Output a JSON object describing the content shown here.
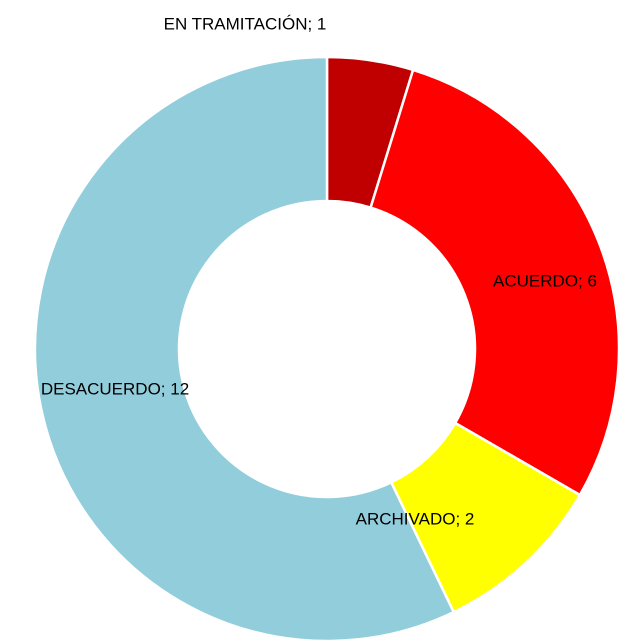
{
  "chart_data": {
    "type": "donut",
    "values": [
      1,
      6,
      2,
      12
    ],
    "value_labels": [
      "EN TRAMITACIÓN; 1",
      "ACUERDO; 6",
      "ARCHIVADO; 2",
      "DESACUERDO; 12"
    ],
    "colors": [
      "#c00000",
      "#ff0000",
      "#ffff00",
      "#92cddc"
    ]
  }
}
